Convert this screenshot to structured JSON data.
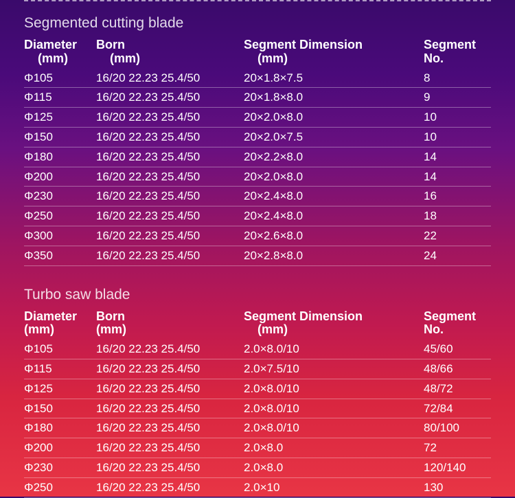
{
  "section1": {
    "title": "Segmented cutting blade",
    "headers": {
      "diameter": "Diameter",
      "diameter_unit": "(mm)",
      "born": "Born",
      "born_unit": "(mm)",
      "segdim": "Segment Dimension",
      "segdim_unit": "(mm)",
      "segno": "Segment",
      "segno_unit": "No."
    },
    "rows": [
      {
        "d": "Φ105",
        "b": "16/20 22.23 25.4/50",
        "s": "20×1.8×7.5",
        "n": "8"
      },
      {
        "d": "Φ115",
        "b": "16/20 22.23 25.4/50",
        "s": "20×1.8×8.0",
        "n": "9"
      },
      {
        "d": "Φ125",
        "b": "16/20 22.23 25.4/50",
        "s": "20×2.0×8.0",
        "n": "10"
      },
      {
        "d": "Φ150",
        "b": "16/20 22.23 25.4/50",
        "s": "20×2.0×7.5",
        "n": "10"
      },
      {
        "d": "Φ180",
        "b": "16/20 22.23 25.4/50",
        "s": "20×2.2×8.0",
        "n": "14"
      },
      {
        "d": "Φ200",
        "b": "16/20 22.23 25.4/50",
        "s": "20×2.0×8.0",
        "n": "14"
      },
      {
        "d": "Φ230",
        "b": "16/20 22.23 25.4/50",
        "s": "20×2.4×8.0",
        "n": "16"
      },
      {
        "d": "Φ250",
        "b": "16/20 22.23 25.4/50",
        "s": "20×2.4×8.0",
        "n": "18"
      },
      {
        "d": "Φ300",
        "b": "16/20 22.23 25.4/50",
        "s": "20×2.6×8.0",
        "n": "22"
      },
      {
        "d": "Φ350",
        "b": "16/20 22.23 25.4/50",
        "s": "20×2.8×8.0",
        "n": "24"
      }
    ]
  },
  "section2": {
    "title": "Turbo saw blade",
    "headers": {
      "diameter": "Diameter",
      "diameter_unit": "(mm)",
      "born": "Born",
      "born_unit": "(mm)",
      "segdim": "Segment Dimension",
      "segdim_unit": "(mm)",
      "segno": "Segment",
      "segno_unit": "No."
    },
    "rows": [
      {
        "d": "Φ105",
        "b": "16/20 22.23 25.4/50",
        "s": "2.0×8.0/10",
        "n": "45/60"
      },
      {
        "d": "Φ115",
        "b": "16/20 22.23 25.4/50",
        "s": "2.0×7.5/10",
        "n": "48/66"
      },
      {
        "d": "Φ125",
        "b": "16/20 22.23 25.4/50",
        "s": "2.0×8.0/10",
        "n": "48/72"
      },
      {
        "d": "Φ150",
        "b": "16/20 22.23 25.4/50",
        "s": "2.0×8.0/10",
        "n": "72/84"
      },
      {
        "d": "Φ180",
        "b": "16/20 22.23 25.4/50",
        "s": "2.0×8.0/10",
        "n": "80/100"
      },
      {
        "d": "Φ200",
        "b": "16/20 22.23 25.4/50",
        "s": "2.0×8.0",
        "n": "72"
      },
      {
        "d": "Φ230",
        "b": "16/20 22.23 25.4/50",
        "s": "2.0×8.0",
        "n": "120/140"
      },
      {
        "d": "Φ250",
        "b": "16/20 22.23 25.4/50",
        "s": "2.0×10",
        "n": "130"
      }
    ]
  }
}
